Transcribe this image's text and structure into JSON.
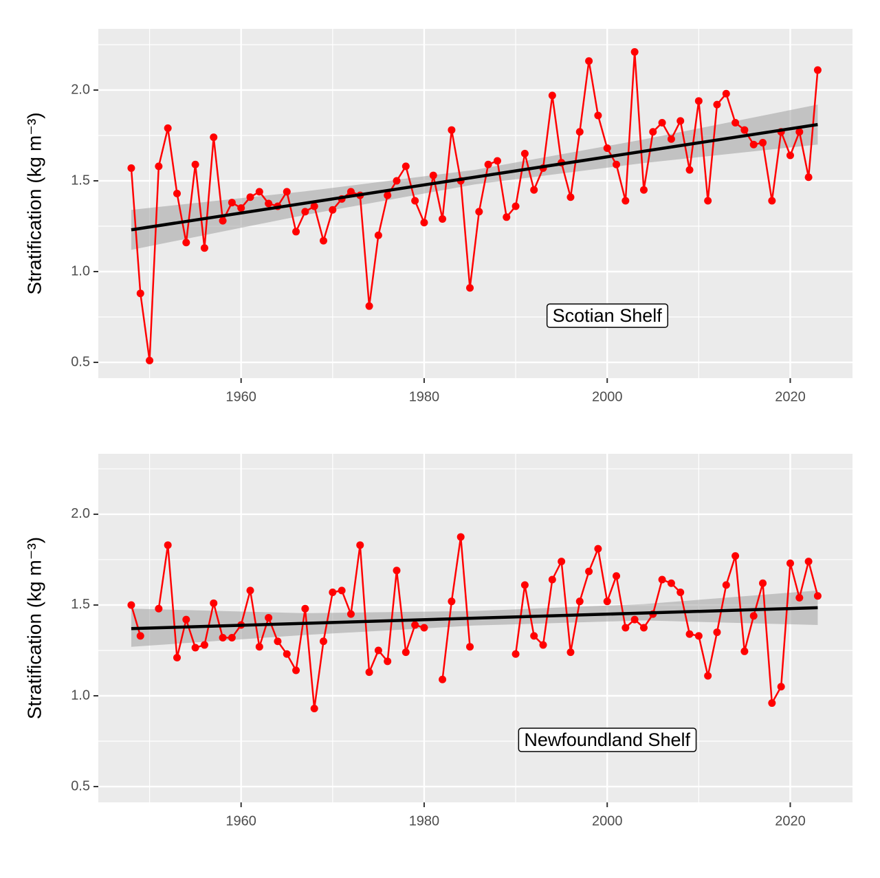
{
  "chart_data": [
    {
      "type": "line",
      "annotation": {
        "text": "Scotian Shelf",
        "x": 2000,
        "y": 0.75
      },
      "y_label": "Stratification (kg m⁻³)",
      "x": [
        1948,
        1949,
        1950,
        1951,
        1952,
        1953,
        1954,
        1955,
        1956,
        1957,
        1958,
        1959,
        1960,
        1961,
        1962,
        1963,
        1964,
        1965,
        1966,
        1967,
        1968,
        1969,
        1970,
        1971,
        1972,
        1973,
        1974,
        1975,
        1976,
        1977,
        1978,
        1979,
        1980,
        1981,
        1982,
        1983,
        1984,
        1985,
        1986,
        1987,
        1988,
        1989,
        1990,
        1991,
        1992,
        1993,
        1994,
        1995,
        1996,
        1997,
        1998,
        1999,
        2000,
        2001,
        2002,
        2003,
        2004,
        2005,
        2006,
        2007,
        2008,
        2009,
        2010,
        2011,
        2012,
        2013,
        2014,
        2015,
        2016,
        2017,
        2018,
        2019,
        2020,
        2021,
        2022,
        2023
      ],
      "values": [
        1.57,
        0.88,
        0.51,
        1.58,
        1.79,
        1.43,
        1.16,
        1.59,
        1.13,
        1.74,
        1.28,
        1.38,
        1.35,
        1.41,
        1.44,
        1.375,
        1.36,
        1.44,
        1.22,
        1.33,
        1.36,
        1.17,
        1.34,
        1.4,
        1.44,
        1.42,
        0.81,
        1.2,
        1.42,
        1.5,
        1.58,
        1.39,
        1.27,
        1.53,
        1.29,
        1.78,
        1.5,
        0.91,
        1.33,
        1.59,
        1.61,
        1.3,
        1.36,
        1.65,
        1.45,
        1.57,
        1.97,
        1.6,
        1.41,
        1.77,
        2.16,
        1.86,
        1.68,
        1.59,
        1.39,
        2.21,
        1.45,
        1.77,
        1.82,
        1.73,
        1.83,
        1.56,
        1.94,
        1.39,
        1.92,
        1.98,
        1.82,
        1.78,
        1.7,
        1.71,
        1.39,
        1.77,
        1.64,
        1.77,
        1.52,
        2.11
      ],
      "color": "#ff0000",
      "trend": {
        "x": [
          1948,
          2023
        ],
        "values": [
          1.23,
          1.81
        ],
        "color": "#000000"
      },
      "band": {
        "x": [
          1948,
          1967,
          1985.5,
          2004,
          2023
        ],
        "lower": [
          1.12,
          1.312,
          1.48,
          1.598,
          1.7
        ],
        "upper": [
          1.34,
          1.442,
          1.56,
          1.728,
          1.92
        ]
      },
      "xlim": [
        1944.4,
        2026.8
      ],
      "xticks": [
        1960,
        1980,
        2000,
        2020
      ],
      "xminor": [
        1950,
        1970,
        1990,
        2010
      ],
      "ylim": [
        0.413,
        2.337
      ],
      "yticks": [
        {
          "value": 0.5,
          "label": "0.5"
        },
        {
          "value": 1,
          "label": "1.0"
        },
        {
          "value": 1.5,
          "label": "1.5"
        },
        {
          "value": 2,
          "label": "2.0"
        }
      ],
      "yminor": [
        0.75,
        1.25,
        1.75,
        2.25
      ],
      "grid": true
    },
    {
      "type": "line",
      "annotation": {
        "text": "Newfoundland Shelf",
        "x": 2000,
        "y": 0.75
      },
      "y_label": "Stratification (kg m⁻³)",
      "x": [
        1948,
        1949,
        1950,
        1951,
        1952,
        1953,
        1954,
        1955,
        1956,
        1957,
        1958,
        1959,
        1960,
        1961,
        1962,
        1963,
        1964,
        1965,
        1966,
        1967,
        1968,
        1969,
        1970,
        1971,
        1972,
        1973,
        1974,
        1975,
        1976,
        1977,
        1978,
        1979,
        1980,
        1981,
        1982,
        1983,
        1984,
        1985,
        1986,
        1987,
        1988,
        1989,
        1990,
        1991,
        1992,
        1993,
        1994,
        1995,
        1996,
        1997,
        1998,
        1999,
        2000,
        2001,
        2002,
        2003,
        2004,
        2005,
        2006,
        2007,
        2008,
        2009,
        2010,
        2011,
        2012,
        2013,
        2014,
        2015,
        2016,
        2017,
        2018,
        2019,
        2020,
        2021,
        2022,
        2023
      ],
      "values": [
        1.5,
        1.33,
        null,
        1.48,
        1.83,
        1.21,
        1.42,
        1.265,
        1.28,
        1.51,
        1.32,
        1.32,
        1.39,
        1.58,
        1.27,
        1.43,
        1.3,
        1.23,
        1.14,
        1.48,
        0.93,
        1.3,
        1.57,
        1.58,
        1.45,
        1.83,
        1.13,
        1.25,
        1.19,
        1.69,
        1.24,
        1.39,
        1.375,
        null,
        1.09,
        1.52,
        1.875,
        1.27,
        null,
        null,
        null,
        null,
        1.23,
        1.61,
        1.33,
        1.28,
        1.64,
        1.74,
        1.24,
        1.52,
        1.685,
        1.81,
        1.52,
        1.66,
        1.375,
        1.42,
        1.375,
        1.45,
        1.64,
        1.62,
        1.57,
        1.34,
        1.33,
        1.11,
        1.35,
        1.61,
        1.77,
        1.245,
        1.44,
        1.62,
        0.96,
        1.05,
        1.73,
        1.54,
        1.74,
        1.55
      ],
      "color": "#ff0000",
      "trend": {
        "x": [
          1948,
          2023
        ],
        "values": [
          1.37,
          1.485
        ],
        "color": "#000000"
      },
      "band": {
        "x": [
          1948,
          1967,
          1985.5,
          2004,
          2023
        ],
        "lower": [
          1.27,
          1.335,
          1.387,
          1.415,
          1.39
        ],
        "upper": [
          1.48,
          1.455,
          1.467,
          1.505,
          1.58
        ]
      },
      "xlim": [
        1944.4,
        2026.8
      ],
      "xticks": [
        1960,
        1980,
        2000,
        2020
      ],
      "xminor": [
        1950,
        1970,
        1990,
        2010
      ],
      "ylim": [
        0.413,
        2.333
      ],
      "yticks": [
        {
          "value": 0.5,
          "label": "0.5"
        },
        {
          "value": 1,
          "label": "1.0"
        },
        {
          "value": 1.5,
          "label": "1.5"
        },
        {
          "value": 2,
          "label": "2.0"
        }
      ],
      "yminor": [
        0.75,
        1.25,
        1.75,
        2.25
      ],
      "grid": true
    }
  ]
}
